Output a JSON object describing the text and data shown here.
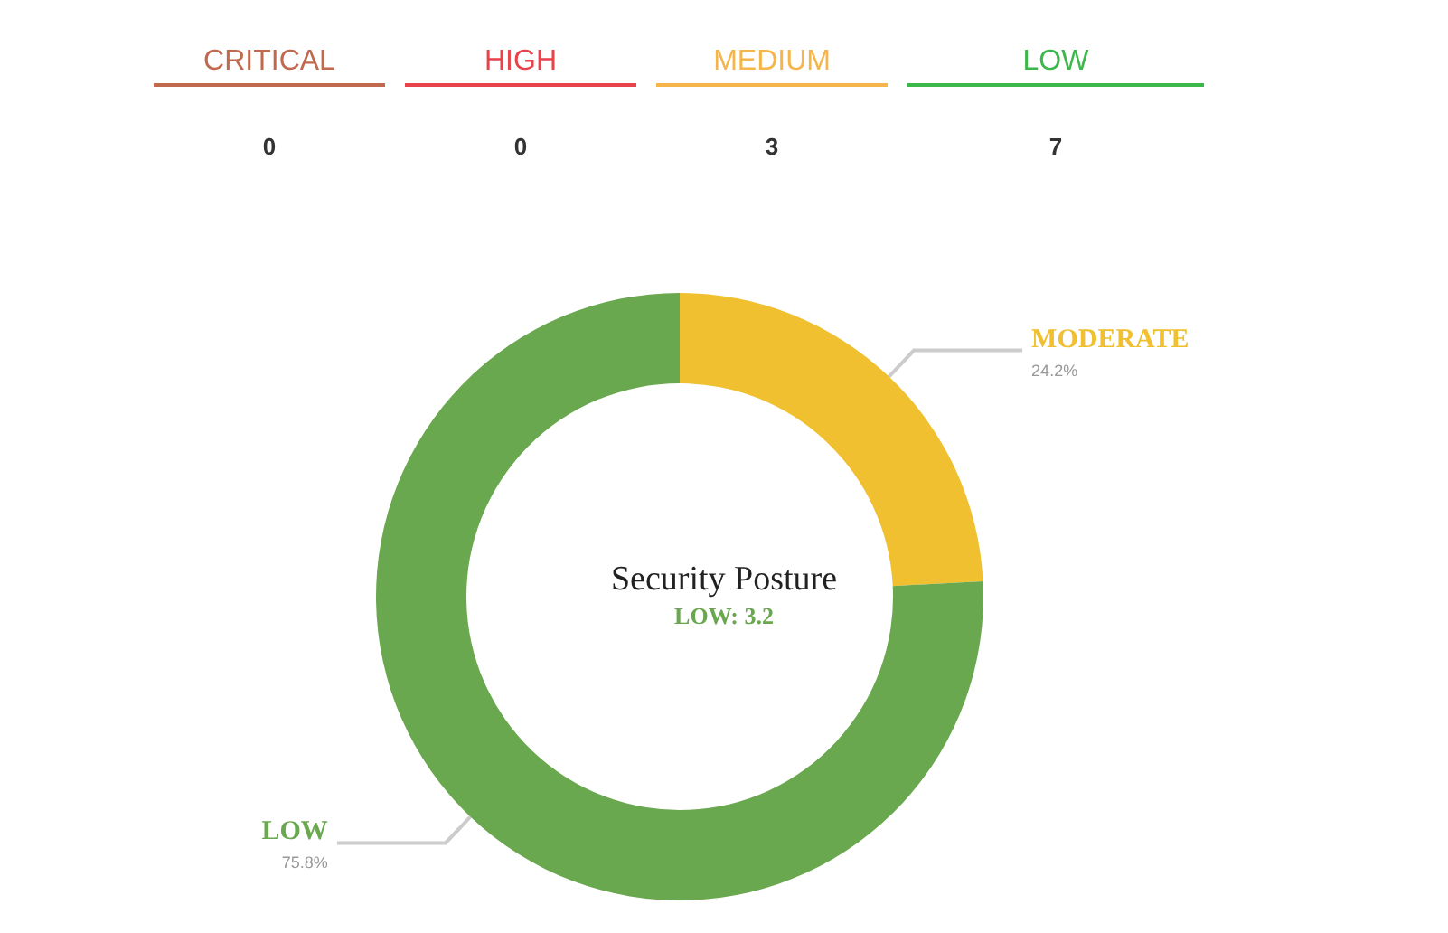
{
  "chart_data": [
    {
      "type": "other",
      "categories": [
        "CRITICAL",
        "HIGH",
        "MEDIUM",
        "LOW"
      ],
      "values": [
        0,
        0,
        3,
        7
      ],
      "colors": [
        "#c0694e",
        "#e8434b",
        "#f5b54a",
        "#3cb84a"
      ],
      "data_labels": true
    },
    {
      "type": "donut",
      "title": "Security Posture",
      "subtitle": "LOW: 3.2",
      "categories": [
        "MODERATE",
        "LOW"
      ],
      "values": [
        24.2,
        75.8
      ],
      "colors": [
        "#f0c030",
        "#6aa84f"
      ],
      "value_labels": [
        "24.2%",
        "75.8%"
      ],
      "legend": false
    }
  ]
}
